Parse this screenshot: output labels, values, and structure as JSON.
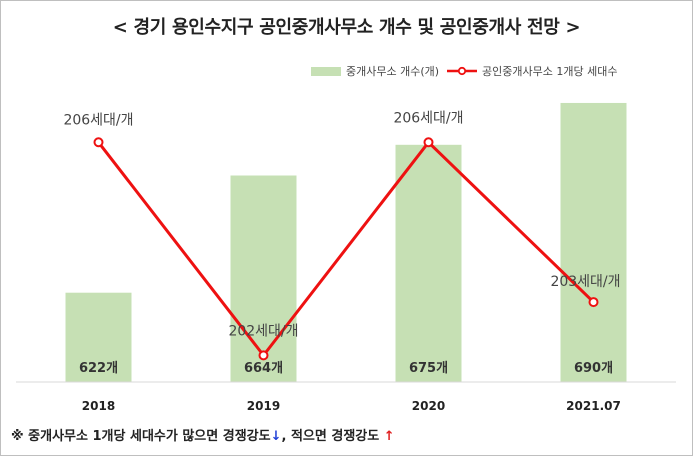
{
  "title": "< 경기 용인수지구 공인중개사무소 개수 및 공인중개사 전망 >",
  "legend": {
    "bar_label": "중개사무소 개수(개)",
    "line_label": "공인중개사무소 1개당 세대수"
  },
  "note": {
    "text_1": "※ 중개사무소 1개당 세대수가 많으면 경쟁강도",
    "arrow_down": "↓",
    "text_2": ", 적으면 경쟁강도",
    "arrow_up": "↑"
  },
  "colors": {
    "bar": "#c6e0b4",
    "line": "#ee1111",
    "marker_fill": "#ffffff"
  },
  "chart_data": {
    "type": "bar",
    "categories": [
      "2018",
      "2019",
      "2020",
      "2021.07"
    ],
    "series": [
      {
        "name": "중개사무소 개수(개)",
        "type": "bar",
        "values": [
          622,
          664,
          675,
          690
        ],
        "labels": [
          "622개",
          "664개",
          "675개",
          "690개"
        ],
        "ylim": [
          590,
          695
        ]
      },
      {
        "name": "공인중개사무소 1개당 세대수",
        "type": "line",
        "values": [
          206,
          202,
          206,
          203
        ],
        "labels": [
          "206세대/개",
          "202세대/개",
          "206세대/개",
          "203세대/개"
        ],
        "ylim": [
          201.5,
          207
        ]
      }
    ],
    "title": "< 경기 용인수지구 공인중개사무소 개수 및 공인중개사 전망 >",
    "grid": false,
    "legend_position": "top-right"
  }
}
